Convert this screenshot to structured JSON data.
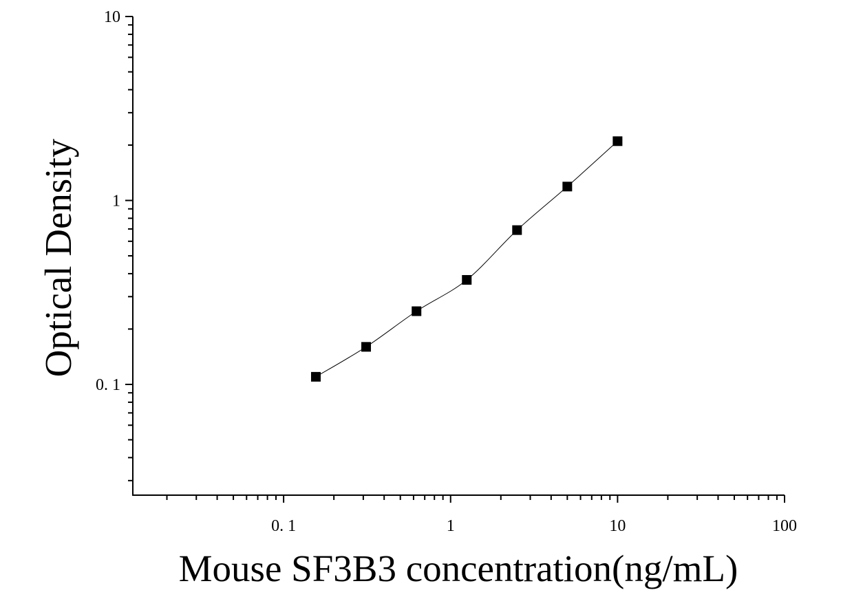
{
  "chart_data": {
    "type": "scatter",
    "title": "",
    "xlabel": "Mouse SF3B3 concentration(ng/mL)",
    "ylabel": "Optical Density",
    "x_scale": "log",
    "y_scale": "log",
    "xlim": [
      0.0125,
      100
    ],
    "ylim": [
      0.025,
      10
    ],
    "x_ticks": [
      {
        "value": 0.1,
        "label": "0. 1"
      },
      {
        "value": 1,
        "label": "1"
      },
      {
        "value": 10,
        "label": "10"
      },
      {
        "value": 100,
        "label": "100"
      }
    ],
    "y_ticks": [
      {
        "value": 0.1,
        "label": "0. 1"
      },
      {
        "value": 1,
        "label": "1"
      },
      {
        "value": 10,
        "label": "10"
      }
    ],
    "grid": false,
    "legend": "none",
    "colors": {
      "points": "#000000",
      "curve": "#000000",
      "axes": "#000000"
    },
    "series": [
      {
        "marker": "square",
        "points": [
          {
            "x": 0.156,
            "y": 0.11
          },
          {
            "x": 0.312,
            "y": 0.16
          },
          {
            "x": 0.625,
            "y": 0.25
          },
          {
            "x": 1.25,
            "y": 0.37
          },
          {
            "x": 2.5,
            "y": 0.69
          },
          {
            "x": 5,
            "y": 1.19
          },
          {
            "x": 10,
            "y": 2.1
          }
        ],
        "fit_curve": true
      }
    ]
  }
}
